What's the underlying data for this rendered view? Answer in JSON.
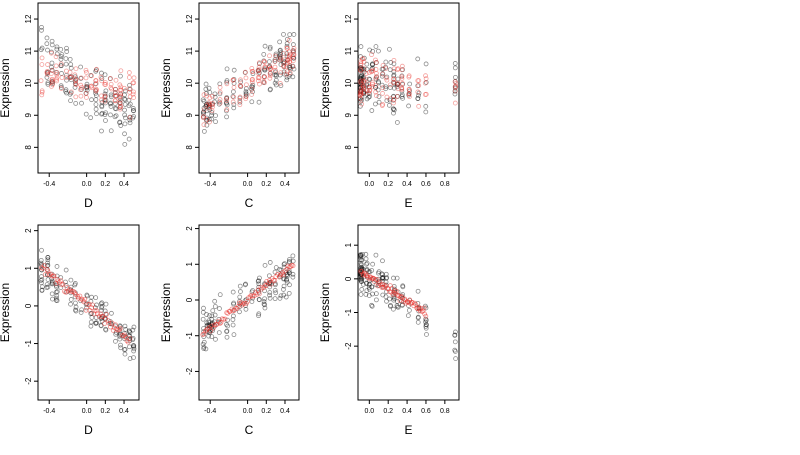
{
  "chart_data": [
    {
      "type": "scatter",
      "panel": "top-left",
      "xlabel": "D",
      "ylabel": "Expression",
      "xticks": [
        "-0.4",
        "0.0",
        "0.2",
        "0.4"
      ],
      "xtick_values": [
        -0.4,
        0.0,
        0.2,
        0.4
      ],
      "yticks": [
        "8",
        "9",
        "10",
        "11",
        "12"
      ],
      "ytick_values": [
        8,
        9,
        10,
        11,
        12
      ],
      "xlim": [
        -0.52,
        0.56
      ],
      "ylim": [
        7.2,
        12.5
      ],
      "x_groups": [
        -0.48,
        -0.42,
        -0.37,
        -0.32,
        -0.27,
        -0.22,
        -0.17,
        -0.12,
        -0.06,
        0.0,
        0.05,
        0.1,
        0.16,
        0.2,
        0.26,
        0.31,
        0.36,
        0.41,
        0.46,
        0.5
      ],
      "series": [
        {
          "color": "#000000",
          "trend": [
            -0.5,
            10.8,
            0.5,
            9.0
          ],
          "spread": 0.85
        },
        {
          "color": "#e8302a",
          "trend": [
            -0.5,
            10.4,
            0.5,
            9.6
          ],
          "spread": 0.65
        }
      ]
    },
    {
      "type": "scatter",
      "panel": "top-middle",
      "xlabel": "C",
      "ylabel": "Expression",
      "xticks": [
        "-0.4",
        "0.0",
        "0.2",
        "0.4"
      ],
      "xtick_values": [
        -0.4,
        0.0,
        0.2,
        0.4
      ],
      "yticks": [
        "8",
        "9",
        "10",
        "11",
        "12"
      ],
      "ytick_values": [
        8,
        9,
        10,
        11,
        12
      ],
      "xlim": [
        -0.52,
        0.55
      ],
      "ylim": [
        7.2,
        12.5
      ],
      "x_groups": [
        -0.47,
        -0.44,
        -0.41,
        -0.38,
        -0.35,
        -0.3,
        -0.22,
        -0.15,
        -0.08,
        -0.02,
        0.05,
        0.12,
        0.18,
        0.24,
        0.3,
        0.35,
        0.39,
        0.42,
        0.45,
        0.49
      ],
      "series": [
        {
          "color": "#000000",
          "trend": [
            -0.5,
            9.0,
            0.5,
            10.9
          ],
          "spread": 0.8
        },
        {
          "color": "#e8302a",
          "trend": [
            -0.5,
            9.1,
            0.5,
            10.9
          ],
          "spread": 0.55
        }
      ]
    },
    {
      "type": "scatter",
      "panel": "top-right",
      "xlabel": "E",
      "ylabel": "Expression",
      "xticks": [
        "0.0",
        "0.2",
        "0.4",
        "0.6",
        "0.8"
      ],
      "xtick_values": [
        0.0,
        0.2,
        0.4,
        0.6,
        0.8
      ],
      "yticks": [
        "8",
        "9",
        "10",
        "11",
        "12"
      ],
      "ytick_values": [
        8,
        9,
        10,
        11,
        12
      ],
      "xlim": [
        -0.12,
        0.95
      ],
      "ylim": [
        7.2,
        12.5
      ],
      "x_groups": [
        -0.09,
        -0.09,
        -0.09,
        -0.08,
        -0.06,
        -0.03,
        0.0,
        0.03,
        0.07,
        0.1,
        0.14,
        0.18,
        0.22,
        0.26,
        0.3,
        0.35,
        0.42,
        0.52,
        0.6,
        0.91
      ],
      "series": [
        {
          "color": "#000000",
          "trend": [
            -0.1,
            10.1,
            0.9,
            9.6
          ],
          "spread": 0.9
        },
        {
          "color": "#e8302a",
          "trend": [
            -0.1,
            10.1,
            0.9,
            9.9
          ],
          "spread": 0.75
        }
      ]
    },
    {
      "type": "scatter",
      "panel": "bottom-left",
      "xlabel": "D",
      "ylabel": "Expression",
      "xticks": [
        "-0.4",
        "0.0",
        "0.2",
        "0.4"
      ],
      "xtick_values": [
        -0.4,
        0.0,
        0.2,
        0.4
      ],
      "yticks": [
        "-2",
        "-1",
        "0",
        "1",
        "2"
      ],
      "ytick_values": [
        -2,
        -1,
        0,
        1,
        2
      ],
      "xlim": [
        -0.52,
        0.56
      ],
      "ylim": [
        -2.5,
        2.15
      ],
      "x_groups": [
        -0.48,
        -0.42,
        -0.37,
        -0.32,
        -0.27,
        -0.22,
        -0.17,
        -0.12,
        -0.06,
        0.0,
        0.05,
        0.1,
        0.16,
        0.2,
        0.26,
        0.31,
        0.36,
        0.41,
        0.46,
        0.5
      ],
      "series": [
        {
          "color": "#000000",
          "trend": [
            -0.5,
            1.0,
            0.5,
            -1.0
          ],
          "spread": 0.55
        },
        {
          "color": "#e8302a",
          "trend": [
            -0.48,
            1.0,
            0.46,
            -0.9
          ],
          "spread": 0.06
        }
      ]
    },
    {
      "type": "scatter",
      "panel": "bottom-middle",
      "xlabel": "C",
      "ylabel": "Expression",
      "xticks": [
        "-0.4",
        "0.0",
        "0.2",
        "0.4"
      ],
      "xtick_values": [
        -0.4,
        0.0,
        0.2,
        0.4
      ],
      "yticks": [
        "-2",
        "-1",
        "0",
        "1",
        "2"
      ],
      "ytick_values": [
        -2,
        -1,
        0,
        1,
        2
      ],
      "xlim": [
        -0.52,
        0.55
      ],
      "ylim": [
        -2.8,
        2.1
      ],
      "x_groups": [
        -0.47,
        -0.44,
        -0.41,
        -0.38,
        -0.35,
        -0.3,
        -0.22,
        -0.15,
        -0.08,
        -0.02,
        0.05,
        0.12,
        0.18,
        0.24,
        0.3,
        0.35,
        0.39,
        0.42,
        0.45,
        0.49
      ],
      "series": [
        {
          "color": "#000000",
          "trend": [
            -0.5,
            -0.9,
            0.5,
            0.9
          ],
          "spread": 0.6
        },
        {
          "color": "#e8302a",
          "trend": [
            -0.48,
            -0.95,
            0.49,
            1.0
          ],
          "spread": 0.05
        }
      ]
    },
    {
      "type": "scatter",
      "panel": "bottom-right",
      "xlabel": "E",
      "ylabel": "Expression",
      "xticks": [
        "0.0",
        "0.2",
        "0.4",
        "0.6",
        "0.8"
      ],
      "xtick_values": [
        0.0,
        0.2,
        0.4,
        0.6,
        0.8
      ],
      "yticks": [
        "-2",
        "-1",
        "0"
      ],
      "ytick_values": [
        -2,
        -1,
        0
      ],
      "yticks_minor": [
        "1"
      ],
      "ytick_minor_values": [
        1
      ],
      "xlim": [
        -0.12,
        0.95
      ],
      "ylim": [
        -3.6,
        1.6
      ],
      "x_groups": [
        -0.09,
        -0.09,
        -0.09,
        -0.08,
        -0.06,
        -0.03,
        0.0,
        0.03,
        0.07,
        0.1,
        0.14,
        0.18,
        0.22,
        0.26,
        0.3,
        0.35,
        0.42,
        0.52,
        0.6,
        0.91
      ],
      "series": [
        {
          "color": "#000000",
          "trend": [
            -0.1,
            0.2,
            0.9,
            -1.8
          ],
          "spread": 0.6
        },
        {
          "color": "#e8302a",
          "trend": [
            -0.09,
            0.2,
            0.6,
            -1.0
          ],
          "spread": 0.05
        }
      ]
    }
  ]
}
